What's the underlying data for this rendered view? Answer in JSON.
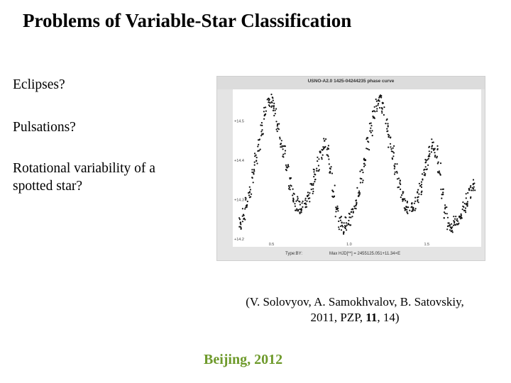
{
  "slide": {
    "title": "Problems of Variable-Star Classification",
    "questions": [
      "Eclipses?",
      "Pulsations?",
      "Rotational variability of a spotted star?"
    ],
    "citation": {
      "line1": "(V. Solovyov, A. Samokhvalov, B. Satovskiy,",
      "line2_pre": "2011, PZP, ",
      "line2_bold": "11",
      "line2_post": ", 14)"
    },
    "footer": "Beijing, 2012"
  },
  "chart_data": {
    "type": "scatter",
    "title": "USNO-A2.0 1425-04244235 phase curve",
    "xlabel": "Phase",
    "ylabel": "Mag(R)",
    "y_ticks": [
      "+14.2",
      "+14.3",
      "+14.4",
      "+14.5"
    ],
    "x_ticks": [
      "0.5",
      "1.0",
      "1.5"
    ],
    "xlim": [
      0.25,
      1.85
    ],
    "ylim": [
      14.58,
      14.18
    ],
    "footer_left": "Type:BY:",
    "footer_right": "Max HJD[**] = 2455125.051+11.34×E",
    "series": [
      {
        "values_desc": "phased light curve",
        "x": [
          0.3,
          0.32,
          0.34,
          0.36,
          0.38,
          0.4,
          0.42,
          0.44,
          0.46,
          0.48,
          0.5,
          0.52,
          0.54,
          0.56,
          0.58,
          0.6,
          0.62,
          0.64,
          0.66,
          0.68,
          0.7,
          0.72,
          0.74,
          0.76,
          0.78,
          0.8,
          0.82,
          0.84,
          0.86,
          0.88,
          0.9,
          0.92,
          0.94,
          0.96,
          0.98,
          1.0,
          1.02,
          1.04,
          1.06,
          1.08,
          1.1,
          1.12,
          1.14,
          1.16,
          1.18,
          1.2,
          1.22,
          1.24,
          1.26,
          1.28,
          1.3,
          1.32,
          1.34,
          1.36,
          1.38,
          1.4,
          1.42,
          1.44,
          1.46,
          1.48,
          1.5,
          1.52,
          1.54,
          1.56,
          1.58,
          1.6,
          1.62,
          1.64,
          1.66,
          1.68,
          1.7,
          1.72,
          1.74,
          1.76,
          1.78,
          1.8
        ],
        "y": [
          14.24,
          14.26,
          14.29,
          14.32,
          14.36,
          14.4,
          14.44,
          14.48,
          14.52,
          14.54,
          14.55,
          14.53,
          14.49,
          14.45,
          14.42,
          14.38,
          14.34,
          14.31,
          14.29,
          14.28,
          14.28,
          14.29,
          14.31,
          14.33,
          14.36,
          14.39,
          14.42,
          14.44,
          14.42,
          14.38,
          14.32,
          14.27,
          14.24,
          14.23,
          14.24,
          14.25,
          14.26,
          14.29,
          14.32,
          14.36,
          14.4,
          14.44,
          14.48,
          14.52,
          14.54,
          14.55,
          14.53,
          14.49,
          14.45,
          14.42,
          14.38,
          14.34,
          14.31,
          14.29,
          14.28,
          14.28,
          14.29,
          14.31,
          14.33,
          14.36,
          14.39,
          14.42,
          14.44,
          14.42,
          14.38,
          14.32,
          14.27,
          14.24,
          14.23,
          14.24,
          14.25,
          14.26,
          14.28,
          14.3,
          14.32,
          14.34
        ]
      }
    ]
  }
}
